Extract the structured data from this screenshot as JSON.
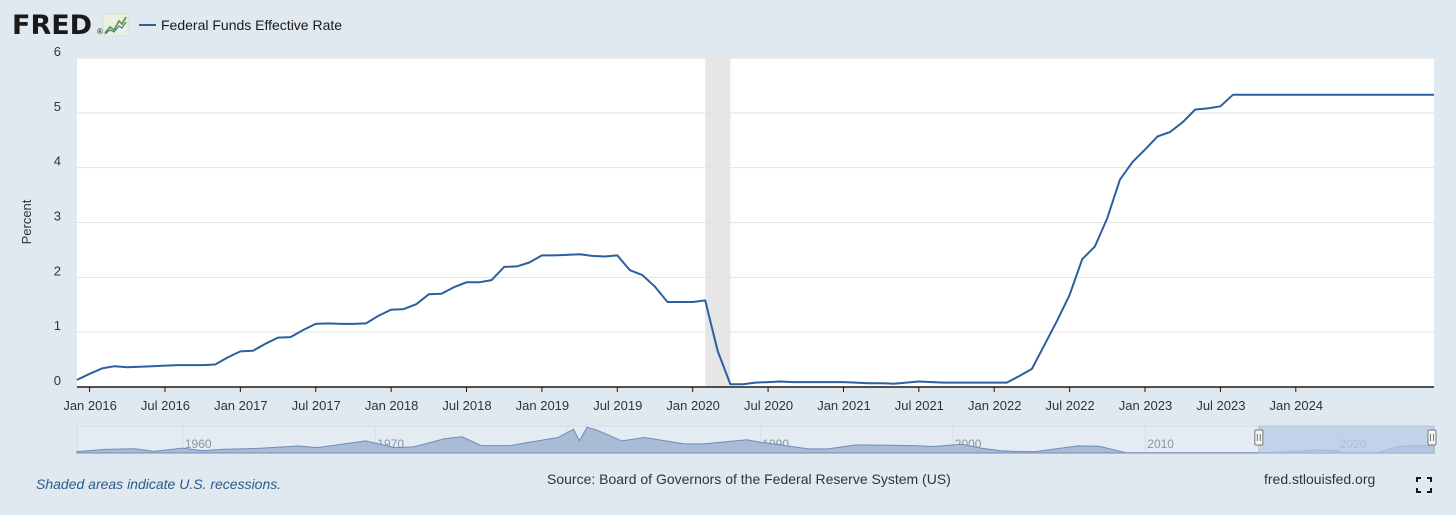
{
  "header": {
    "logo_text": "FRED",
    "logo_mark": "®"
  },
  "footer": {
    "recession_note": "Shaded areas indicate U.S. recessions.",
    "source": "Source: Board of Governors of the Federal Reserve System (US)",
    "site": "fred.stlouisfed.org"
  },
  "icons": {
    "fullscreen": "fullscreen-icon",
    "logo_chart": "line-chart-icon"
  },
  "chart_data": {
    "type": "line",
    "title": "",
    "xlabel": "",
    "ylabel": "Percent",
    "ylim": [
      0,
      6
    ],
    "yticks": [
      "0",
      "1",
      "2",
      "3",
      "4",
      "5",
      "6"
    ],
    "xlim": [
      "2015-12",
      "2024-12"
    ],
    "xticks": [
      {
        "date": "2016-01",
        "label": "Jan 2016"
      },
      {
        "date": "2016-07",
        "label": "Jul 2016"
      },
      {
        "date": "2017-01",
        "label": "Jan 2017"
      },
      {
        "date": "2017-07",
        "label": "Jul 2017"
      },
      {
        "date": "2018-01",
        "label": "Jan 2018"
      },
      {
        "date": "2018-07",
        "label": "Jul 2018"
      },
      {
        "date": "2019-01",
        "label": "Jan 2019"
      },
      {
        "date": "2019-07",
        "label": "Jul 2019"
      },
      {
        "date": "2020-01",
        "label": "Jan 2020"
      },
      {
        "date": "2020-07",
        "label": "Jul 2020"
      },
      {
        "date": "2021-01",
        "label": "Jan 2021"
      },
      {
        "date": "2021-07",
        "label": "Jul 2021"
      },
      {
        "date": "2022-01",
        "label": "Jan 2022"
      },
      {
        "date": "2022-07",
        "label": "Jul 2022"
      },
      {
        "date": "2023-01",
        "label": "Jan 2023"
      },
      {
        "date": "2023-07",
        "label": "Jul 2023"
      },
      {
        "date": "2024-01",
        "label": "Jan 2024"
      }
    ],
    "grid": true,
    "legend": "top-left",
    "recessions": [
      {
        "start": "2020-02",
        "end": "2020-04"
      }
    ],
    "series": [
      {
        "name": "Federal Funds Effective Rate",
        "color": "#2c5f9e",
        "points": [
          [
            "2015-12",
            0.13
          ],
          [
            "2016-01",
            0.24
          ],
          [
            "2016-02",
            0.34
          ],
          [
            "2016-03",
            0.38
          ],
          [
            "2016-04",
            0.36
          ],
          [
            "2016-05",
            0.37
          ],
          [
            "2016-06",
            0.38
          ],
          [
            "2016-07",
            0.39
          ],
          [
            "2016-08",
            0.4
          ],
          [
            "2016-09",
            0.4
          ],
          [
            "2016-10",
            0.4
          ],
          [
            "2016-11",
            0.41
          ],
          [
            "2016-12",
            0.54
          ],
          [
            "2017-01",
            0.65
          ],
          [
            "2017-02",
            0.66
          ],
          [
            "2017-03",
            0.79
          ],
          [
            "2017-04",
            0.9
          ],
          [
            "2017-05",
            0.91
          ],
          [
            "2017-06",
            1.04
          ],
          [
            "2017-07",
            1.15
          ],
          [
            "2017-08",
            1.16
          ],
          [
            "2017-09",
            1.15
          ],
          [
            "2017-10",
            1.15
          ],
          [
            "2017-11",
            1.16
          ],
          [
            "2017-12",
            1.3
          ],
          [
            "2018-01",
            1.41
          ],
          [
            "2018-02",
            1.42
          ],
          [
            "2018-03",
            1.51
          ],
          [
            "2018-04",
            1.69
          ],
          [
            "2018-05",
            1.7
          ],
          [
            "2018-06",
            1.82
          ],
          [
            "2018-07",
            1.91
          ],
          [
            "2018-08",
            1.91
          ],
          [
            "2018-09",
            1.95
          ],
          [
            "2018-10",
            2.19
          ],
          [
            "2018-11",
            2.2
          ],
          [
            "2018-12",
            2.27
          ],
          [
            "2019-01",
            2.4
          ],
          [
            "2019-02",
            2.4
          ],
          [
            "2019-03",
            2.41
          ],
          [
            "2019-04",
            2.42
          ],
          [
            "2019-05",
            2.39
          ],
          [
            "2019-06",
            2.38
          ],
          [
            "2019-07",
            2.4
          ],
          [
            "2019-08",
            2.13
          ],
          [
            "2019-09",
            2.04
          ],
          [
            "2019-10",
            1.83
          ],
          [
            "2019-11",
            1.55
          ],
          [
            "2019-12",
            1.55
          ],
          [
            "2020-01",
            1.55
          ],
          [
            "2020-02",
            1.58
          ],
          [
            "2020-03",
            0.65
          ],
          [
            "2020-04",
            0.05
          ],
          [
            "2020-05",
            0.05
          ],
          [
            "2020-06",
            0.08
          ],
          [
            "2020-07",
            0.09
          ],
          [
            "2020-08",
            0.1
          ],
          [
            "2020-09",
            0.09
          ],
          [
            "2020-10",
            0.09
          ],
          [
            "2020-11",
            0.09
          ],
          [
            "2020-12",
            0.09
          ],
          [
            "2021-01",
            0.09
          ],
          [
            "2021-02",
            0.08
          ],
          [
            "2021-03",
            0.07
          ],
          [
            "2021-04",
            0.07
          ],
          [
            "2021-05",
            0.06
          ],
          [
            "2021-06",
            0.08
          ],
          [
            "2021-07",
            0.1
          ],
          [
            "2021-08",
            0.09
          ],
          [
            "2021-09",
            0.08
          ],
          [
            "2021-10",
            0.08
          ],
          [
            "2021-11",
            0.08
          ],
          [
            "2021-12",
            0.08
          ],
          [
            "2022-01",
            0.08
          ],
          [
            "2022-02",
            0.08
          ],
          [
            "2022-03",
            0.2
          ],
          [
            "2022-04",
            0.33
          ],
          [
            "2022-05",
            0.77
          ],
          [
            "2022-06",
            1.21
          ],
          [
            "2022-07",
            1.68
          ],
          [
            "2022-08",
            2.33
          ],
          [
            "2022-09",
            2.56
          ],
          [
            "2022-10",
            3.08
          ],
          [
            "2022-11",
            3.78
          ],
          [
            "2022-12",
            4.1
          ],
          [
            "2023-01",
            4.33
          ],
          [
            "2023-02",
            4.57
          ],
          [
            "2023-03",
            4.65
          ],
          [
            "2023-04",
            4.83
          ],
          [
            "2023-05",
            5.06
          ],
          [
            "2023-06",
            5.08
          ],
          [
            "2023-07",
            5.12
          ],
          [
            "2023-08",
            5.33
          ],
          [
            "2023-09",
            5.33
          ],
          [
            "2023-10",
            5.33
          ],
          [
            "2023-11",
            5.33
          ],
          [
            "2023-12",
            5.33
          ],
          [
            "2024-01",
            5.33
          ],
          [
            "2024-02",
            5.33
          ],
          [
            "2024-03",
            5.33
          ],
          [
            "2024-04",
            5.33
          ],
          [
            "2024-05",
            5.33
          ],
          [
            "2024-06",
            5.33
          ],
          [
            "2024-07",
            5.33
          ],
          [
            "2024-08",
            5.33
          ],
          [
            "2024-09",
            5.33
          ],
          [
            "2024-10",
            5.33
          ],
          [
            "2024-11",
            5.33
          ],
          [
            "2024-12",
            5.33
          ]
        ]
      }
    ],
    "navigator": {
      "xlim": [
        1954.5,
        2025
      ],
      "tick_labels": [
        {
          "year": 1960,
          "label": "1960"
        },
        {
          "year": 1970,
          "label": "1970"
        },
        {
          "year": 1980,
          "label": "1980"
        },
        {
          "year": 1990,
          "label": "1990"
        },
        {
          "year": 2000,
          "label": "2000"
        },
        {
          "year": 2010,
          "label": "2010"
        },
        {
          "year": 2020,
          "label": "2020"
        }
      ],
      "selected_range": [
        2015.9,
        2025
      ],
      "history": [
        [
          1954.5,
          1.0
        ],
        [
          1956,
          2.7
        ],
        [
          1957.5,
          3.2
        ],
        [
          1958.5,
          1.2
        ],
        [
          1960,
          3.6
        ],
        [
          1961,
          1.6
        ],
        [
          1962,
          2.7
        ],
        [
          1964,
          3.5
        ],
        [
          1966,
          5.2
        ],
        [
          1967,
          4.0
        ],
        [
          1969.5,
          9.0
        ],
        [
          1971,
          4.0
        ],
        [
          1972,
          4.5
        ],
        [
          1973.6,
          10.5
        ],
        [
          1974.5,
          12.0
        ],
        [
          1975.5,
          5.5
        ],
        [
          1977,
          5.5
        ],
        [
          1978,
          8.0
        ],
        [
          1979.5,
          11.5
        ],
        [
          1980.3,
          17.6
        ],
        [
          1980.6,
          9.0
        ],
        [
          1981,
          19.1
        ],
        [
          1981.5,
          17.0
        ],
        [
          1982,
          14.0
        ],
        [
          1982.8,
          9.0
        ],
        [
          1984,
          11.5
        ],
        [
          1986,
          6.8
        ],
        [
          1987,
          6.7
        ],
        [
          1989.3,
          9.8
        ],
        [
          1990,
          8.0
        ],
        [
          1991,
          6.0
        ],
        [
          1992.5,
          3.0
        ],
        [
          1993.5,
          3.0
        ],
        [
          1995,
          6.0
        ],
        [
          1998,
          5.5
        ],
        [
          1999,
          4.8
        ],
        [
          2000.5,
          6.5
        ],
        [
          2001.5,
          3.5
        ],
        [
          2002.5,
          1.7
        ],
        [
          2003.5,
          1.0
        ],
        [
          2004.3,
          1.0
        ],
        [
          2006.5,
          5.25
        ],
        [
          2007.6,
          5.0
        ],
        [
          2008.5,
          2.0
        ],
        [
          2009,
          0.15
        ],
        [
          2015.9,
          0.13
        ],
        [
          2017,
          0.66
        ],
        [
          2018,
          1.41
        ],
        [
          2019,
          2.4
        ],
        [
          2020,
          1.55
        ],
        [
          2020.3,
          0.05
        ],
        [
          2022,
          0.08
        ],
        [
          2023,
          4.33
        ],
        [
          2023.6,
          5.33
        ],
        [
          2025,
          5.33
        ]
      ]
    }
  }
}
